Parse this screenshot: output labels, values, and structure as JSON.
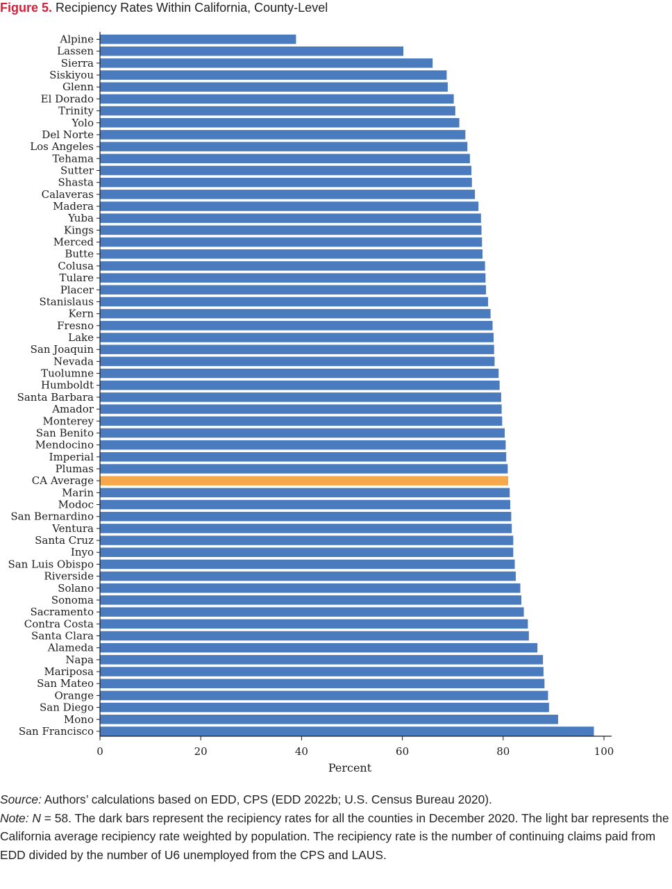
{
  "figure": {
    "label": "Figure 5.",
    "title": "Recipiency Rates Within California, County-Level"
  },
  "colors": {
    "bar": "#4a7bbf",
    "highlight": "#f7a84a",
    "axis": "#1a1a1a",
    "label_red": "#d71f3a"
  },
  "chart_data": {
    "type": "bar",
    "orientation": "horizontal",
    "title": "Recipiency Rates Within California, County-Level",
    "xlabel": "Percent",
    "ylabel": "",
    "xlim": [
      0,
      100
    ],
    "xticks": [
      0,
      20,
      40,
      60,
      80,
      100
    ],
    "grid": false,
    "legend": "none",
    "highlight_category": "CA Average",
    "categories": [
      "Alpine",
      "Lassen",
      "Sierra",
      "Siskiyou",
      "Glenn",
      "El Dorado",
      "Trinity",
      "Yolo",
      "Del Norte",
      "Los  Angeles",
      "Tehama",
      "Sutter",
      "Shasta",
      "Calaveras",
      "Madera",
      "Yuba",
      "Kings",
      "Merced",
      "Butte",
      "Colusa",
      "Tulare",
      "Placer",
      "Stanislaus",
      "Kern",
      "Fresno",
      "Lake",
      "San Joaquin",
      "Nevada",
      "Tuolumne",
      "Humboldt",
      "Santa Barbara",
      "Amador",
      "Monterey",
      "San Benito",
      "Mendocino",
      "Imperial",
      "Plumas",
      "CA Average",
      "Marin",
      "Modoc",
      "San Bernardino",
      "Ventura",
      "Santa Cruz",
      "Inyo",
      "San Luis Obispo",
      "Riverside",
      "Solano",
      "Sonoma",
      "Sacramento",
      "Contra Costa",
      "Santa Clara",
      "Alameda",
      "Napa",
      "Mariposa",
      "San Mateo",
      "Orange",
      "San Diego",
      "Mono",
      "San Francisco"
    ],
    "values": [
      38.9,
      60.2,
      66.0,
      68.8,
      69.0,
      70.2,
      70.5,
      71.3,
      72.5,
      72.9,
      73.4,
      73.7,
      73.8,
      74.4,
      75.1,
      75.6,
      75.7,
      75.8,
      75.9,
      76.4,
      76.5,
      76.6,
      77.0,
      77.5,
      77.9,
      78.1,
      78.2,
      78.3,
      79.1,
      79.3,
      79.6,
      79.7,
      79.8,
      80.3,
      80.5,
      80.6,
      80.9,
      81.0,
      81.3,
      81.4,
      81.6,
      81.7,
      82.0,
      82.0,
      82.3,
      82.5,
      83.4,
      83.6,
      84.1,
      84.9,
      85.1,
      86.8,
      87.9,
      88.0,
      88.2,
      88.9,
      89.1,
      90.9,
      98.0
    ]
  },
  "footer": {
    "source_label": "Source:",
    "source_text": " Authors’ calculations based on EDD, CPS (EDD 2022b; U.S. Census Bureau 2020).",
    "note_label": "Note: N",
    "note_text": " = 58. The dark bars represent the recipiency rates for all the counties in December 2020. The light bar represents the California average recipiency rate weighted by population. The recipiency rate is the number of continuing claims paid from EDD divided by the number of U6 unemployed from the CPS and LAUS."
  }
}
